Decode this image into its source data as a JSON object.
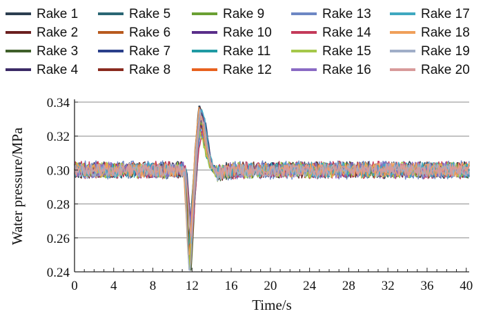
{
  "chart_data": {
    "type": "line",
    "title": "",
    "xlabel": "Time/s",
    "ylabel": "Water pressure/MPa",
    "xlim": [
      0,
      40.3
    ],
    "ylim": [
      0.24,
      0.34
    ],
    "xticks": [
      0,
      4,
      8,
      12,
      16,
      20,
      24,
      28,
      32,
      36,
      40
    ],
    "xtick_labels": [
      "0",
      "4",
      "8",
      "12",
      "16",
      "20",
      "24",
      "28",
      "32",
      "36",
      "40"
    ],
    "yticks": [
      0.24,
      0.26,
      0.28,
      0.3,
      0.32,
      0.34
    ],
    "ytick_labels": [
      "0.24",
      "0.26",
      "0.28",
      "0.30",
      "0.32",
      "0.34"
    ],
    "grid": "horizontal",
    "legend_position": "top",
    "event_profile": {
      "x": [
        0,
        11.3,
        11.55,
        11.8,
        12.1,
        12.5,
        12.85,
        13.2,
        13.6,
        14.0,
        14.6,
        15.3,
        16.5,
        40.3
      ],
      "y": [
        0.3,
        0.3,
        0.275,
        0.25,
        0.275,
        0.315,
        0.335,
        0.328,
        0.312,
        0.302,
        0.298,
        0.299,
        0.3,
        0.3
      ]
    },
    "baseline": 0.3,
    "noise_amplitude_MPa": 0.004,
    "sample_interval_s": 0.1,
    "series": [
      {
        "name": "Rake 1",
        "color": "#2c3e50"
      },
      {
        "name": "Rake 2",
        "color": "#6b1f1f"
      },
      {
        "name": "Rake 3",
        "color": "#3f5f2a"
      },
      {
        "name": "Rake 4",
        "color": "#3b2a66"
      },
      {
        "name": "Rake 5",
        "color": "#2a6674"
      },
      {
        "name": "Rake 6",
        "color": "#b85a1e"
      },
      {
        "name": "Rake 7",
        "color": "#2a3f8a"
      },
      {
        "name": "Rake 8",
        "color": "#8a2a1e"
      },
      {
        "name": "Rake 9",
        "color": "#6aa033"
      },
      {
        "name": "Rake 10",
        "color": "#5a2e8a"
      },
      {
        "name": "Rake 11",
        "color": "#1f9aa3"
      },
      {
        "name": "Rake 12",
        "color": "#e8621e"
      },
      {
        "name": "Rake 13",
        "color": "#6d87c4"
      },
      {
        "name": "Rake 14",
        "color": "#c43a5a"
      },
      {
        "name": "Rake 15",
        "color": "#a5c84a"
      },
      {
        "name": "Rake 16",
        "color": "#8a6ac4"
      },
      {
        "name": "Rake 17",
        "color": "#3fa8c0"
      },
      {
        "name": "Rake 18",
        "color": "#f0a05a"
      },
      {
        "name": "Rake 19",
        "color": "#a0aec8"
      },
      {
        "name": "Rake 20",
        "color": "#d89a9a"
      }
    ]
  }
}
